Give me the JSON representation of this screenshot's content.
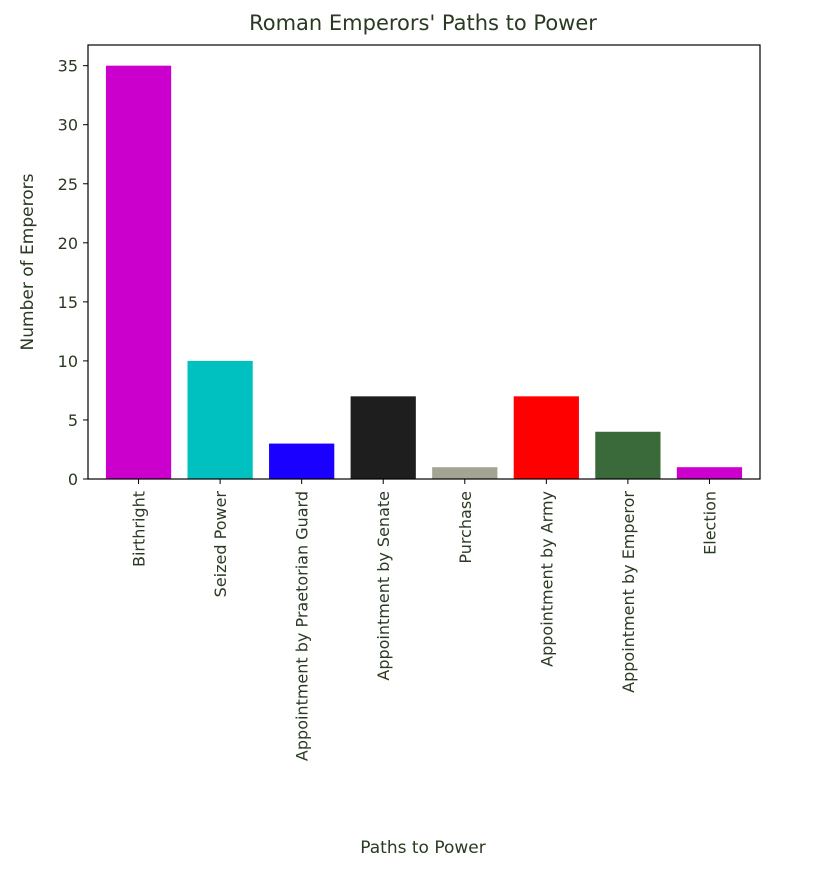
{
  "chart_data": {
    "type": "bar",
    "title": "Roman Emperors' Paths to Power",
    "xlabel": "Paths to Power",
    "ylabel": "Number of Emperors",
    "categories": [
      "Birthright",
      "Seized Power",
      "Appointment by Praetorian Guard",
      "Appointment by Senate",
      "Purchase",
      "Appointment by Army",
      "Appointment by Emperor",
      "Election"
    ],
    "values": [
      35,
      10,
      3,
      7,
      1,
      7,
      4,
      1
    ],
    "colors": [
      "#cc00cc",
      "#00c0c0",
      "#1a00ff",
      "#1e1e1e",
      "#a4a494",
      "#ff0000",
      "#3a6a3a",
      "#cc00cc"
    ],
    "ylim": [
      0,
      36.75
    ],
    "yticks": [
      0,
      5,
      10,
      15,
      20,
      25,
      30,
      35
    ],
    "grid": false,
    "legend": "none"
  }
}
